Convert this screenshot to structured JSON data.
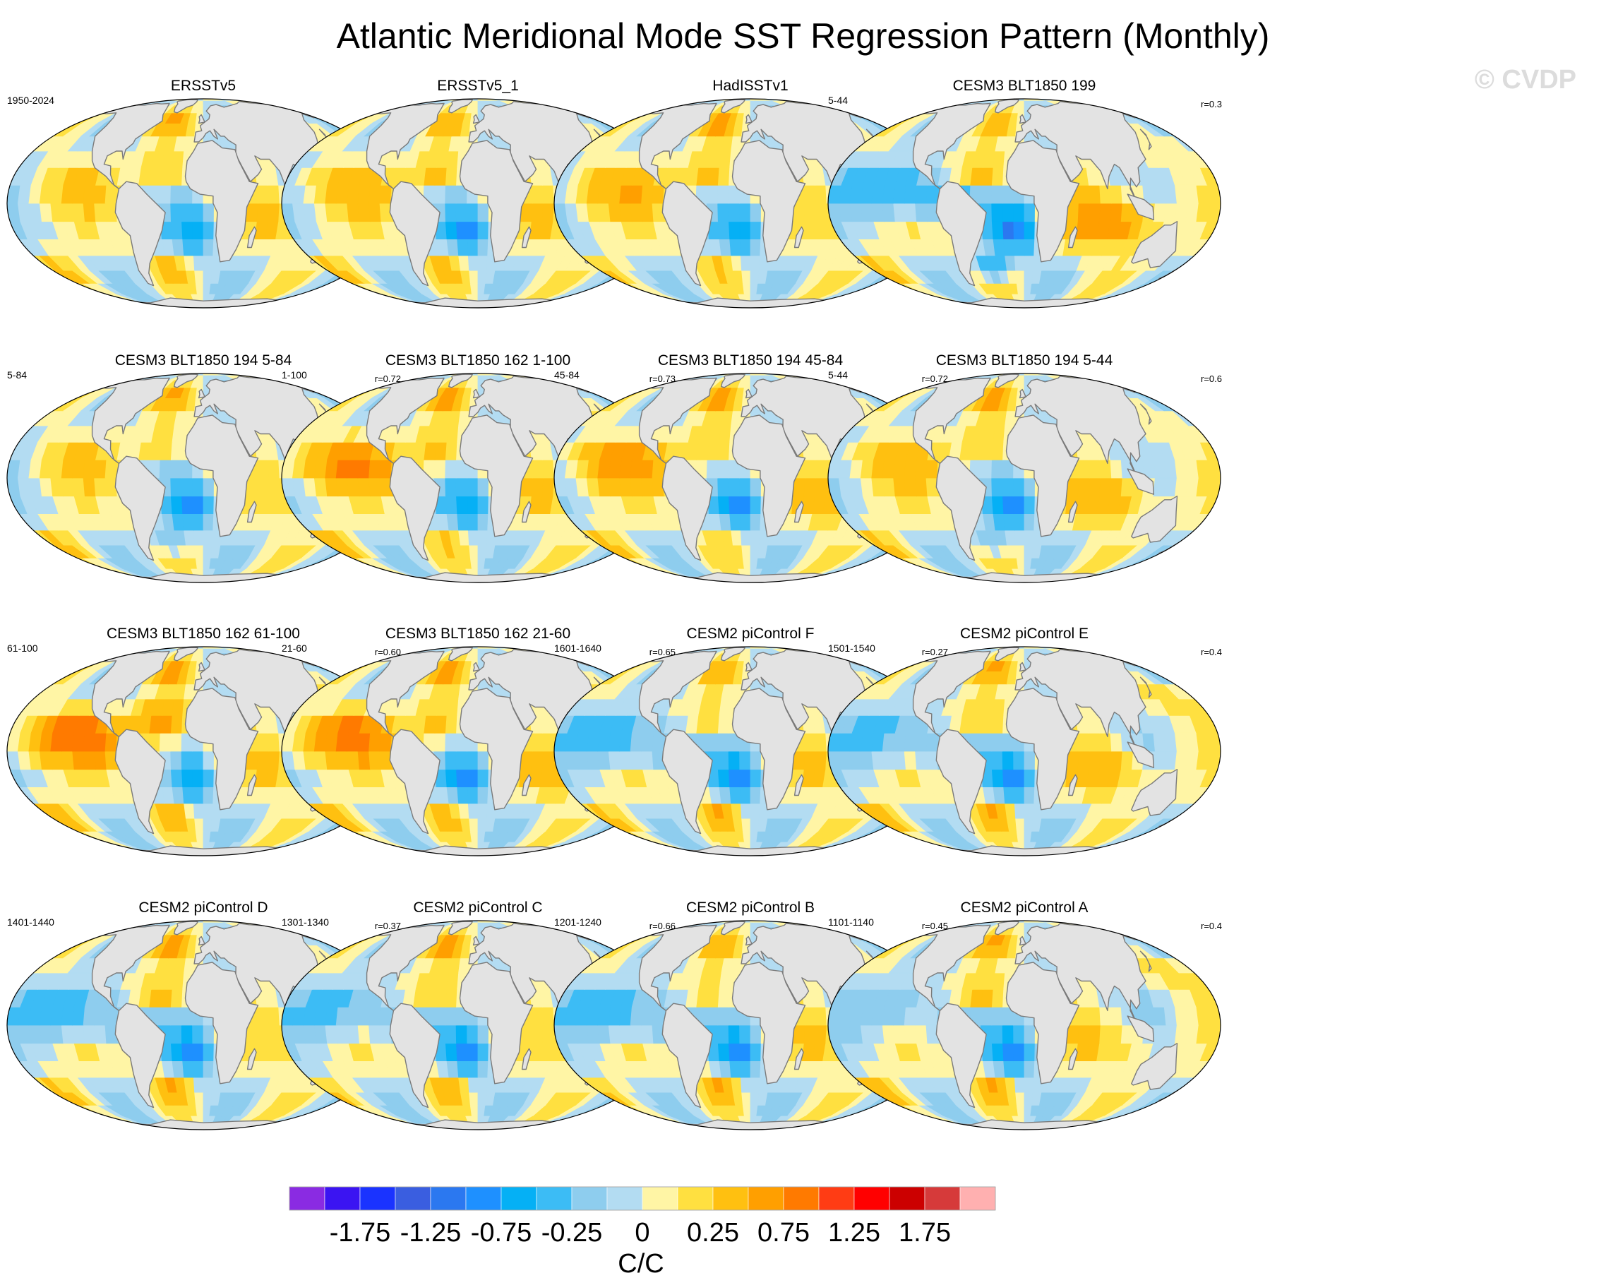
{
  "title": "Atlantic Meridional Mode SST Regression Pattern (Monthly)",
  "watermark": "© CVDP",
  "colors": {
    "ocean_bg": "#b3dcf2",
    "land": "#e3e3e3",
    "coast": "#7a7a7a",
    "outline": "#000000"
  },
  "chart_data": {
    "type": "heatmap",
    "title": "Atlantic Meridional Mode SST Regression Pattern (Monthly)",
    "units_label": "C/C",
    "levels": [
      -2.0,
      -1.75,
      -1.5,
      -1.25,
      -1.0,
      -0.75,
      -0.5,
      -0.25,
      -0.1,
      0.0,
      0.1,
      0.25,
      0.5,
      0.75,
      1.0,
      1.25,
      1.5,
      1.75,
      2.0
    ],
    "tick_labels": [
      "-1.75",
      "-1.25",
      "-0.75",
      "-0.25",
      "0",
      "0.25",
      "0.75",
      "1.25",
      "1.75"
    ],
    "palette": [
      "#8a2be2",
      "#3b14f2",
      "#1a33ff",
      "#3a5ee0",
      "#2b78f0",
      "#1e90ff",
      "#05b0f5",
      "#3cbcf5",
      "#8ecdee",
      "#b3dcf2",
      "#fff5a5",
      "#ffe040",
      "#ffc010",
      "#ff9f00",
      "#ff7a00",
      "#ff3c14",
      "#ff0000",
      "#cc0000",
      "#d63a3a",
      "#ffb0b0"
    ],
    "panels": [
      {
        "name": "ERSSTv5",
        "left": "1950-2024",
        "right": "",
        "pattern": [
          0.2,
          0.4,
          0.5,
          -0.7,
          0.3,
          0.3,
          0.1
        ]
      },
      {
        "name": "ERSSTv5_1",
        "left": "",
        "right": "",
        "pattern": [
          0.3,
          0.5,
          0.4,
          -0.8,
          0.3,
          0.3,
          0.1
        ]
      },
      {
        "name": "HadISSTv1",
        "left": "",
        "right": "",
        "pattern": [
          0.4,
          0.5,
          0.6,
          -0.7,
          0.2,
          0.2,
          0.0
        ]
      },
      {
        "name": "CESM3 BLT1850 199",
        "left": "5-44",
        "right": "r=0.3",
        "pattern": [
          -0.6,
          0.5,
          0.3,
          -1.0,
          -0.5,
          0.8,
          0.1
        ]
      },
      {
        "name": "CESM3 BLT1850 194 5-84",
        "left": "5-84",
        "right": "r=0.72",
        "pattern": [
          0.2,
          0.3,
          0.5,
          -0.8,
          -0.3,
          0.2,
          0.1
        ]
      },
      {
        "name": "CESM3 BLT1850 162 1-100",
        "left": "1-100",
        "right": "r=0.73",
        "pattern": [
          0.7,
          0.5,
          0.6,
          -0.7,
          0.2,
          0.3,
          0.2
        ]
      },
      {
        "name": "CESM3 BLT1850 194 45-84",
        "left": "45-84",
        "right": "r=0.72",
        "pattern": [
          0.6,
          0.4,
          0.6,
          -0.8,
          0.1,
          0.4,
          0.1
        ]
      },
      {
        "name": "CESM3 BLT1850 194 5-44",
        "left": "5-44",
        "right": "r=0.6",
        "pattern": [
          0.3,
          0.4,
          0.6,
          -0.8,
          -0.3,
          0.5,
          0.1
        ]
      },
      {
        "name": "CESM3 BLT1850 162 61-100",
        "left": "61-100",
        "right": "r=0.60",
        "pattern": [
          0.9,
          0.8,
          0.6,
          -0.6,
          0.3,
          0.3,
          0.3
        ]
      },
      {
        "name": "CESM3 BLT1850 162 21-60",
        "left": "21-60",
        "right": "r=0.65",
        "pattern": [
          0.8,
          0.5,
          0.7,
          -0.8,
          0.3,
          0.4,
          0.2
        ]
      },
      {
        "name": "CESM2 piControl F",
        "left": "1601-1640",
        "right": "r=0.27",
        "pattern": [
          -0.5,
          0.3,
          0.4,
          -0.9,
          0.6,
          0.3,
          0.1
        ]
      },
      {
        "name": "CESM2 piControl E",
        "left": "1501-1540",
        "right": "r=0.4",
        "pattern": [
          -0.4,
          0.4,
          0.5,
          -0.9,
          0.6,
          0.4,
          0.2
        ]
      },
      {
        "name": "CESM2 piControl D",
        "left": "1401-1440",
        "right": "r=0.37",
        "pattern": [
          -0.5,
          0.5,
          0.8,
          -0.8,
          0.5,
          0.2,
          0.1
        ]
      },
      {
        "name": "CESM2 piControl C",
        "left": "1301-1340",
        "right": "r=0.66",
        "pattern": [
          -0.4,
          0.4,
          0.6,
          -0.8,
          0.4,
          0.2,
          0.0
        ]
      },
      {
        "name": "CESM2 piControl B",
        "left": "1201-1240",
        "right": "r=0.45",
        "pattern": [
          -0.5,
          0.3,
          0.4,
          -0.8,
          0.5,
          0.3,
          0.0
        ]
      },
      {
        "name": "CESM2 piControl A",
        "left": "1101-1140",
        "right": "r=0.4",
        "pattern": [
          -0.3,
          0.5,
          0.5,
          -0.9,
          0.6,
          0.3,
          0.2
        ]
      }
    ]
  }
}
